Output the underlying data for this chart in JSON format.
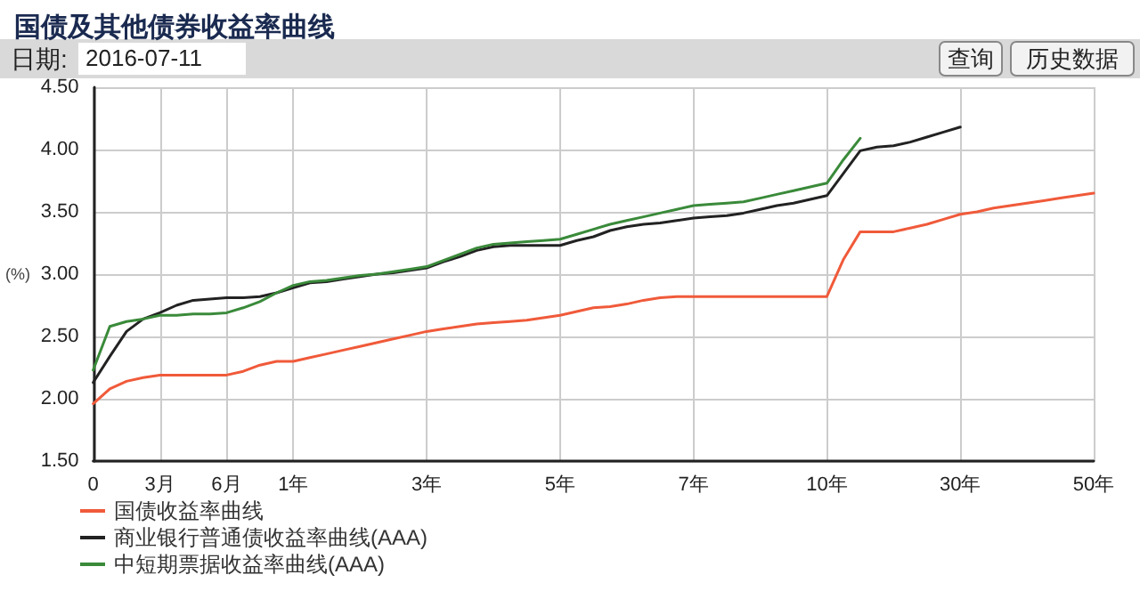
{
  "chart_data": {
    "type": "line",
    "title": "国债及其他债券收益率曲线",
    "ylabel": "(%)",
    "annotations": [
      "日期:",
      "2016-07-11",
      "查询",
      "历史数据"
    ],
    "categories": [
      "0",
      null,
      null,
      null,
      "3月",
      null,
      null,
      null,
      "6月",
      null,
      null,
      null,
      "1年",
      null,
      null,
      null,
      null,
      null,
      null,
      null,
      "3年",
      null,
      null,
      null,
      null,
      null,
      null,
      null,
      "5年",
      null,
      null,
      null,
      null,
      null,
      null,
      null,
      "7年",
      null,
      null,
      null,
      null,
      null,
      null,
      null,
      "10年",
      null,
      null,
      null,
      null,
      null,
      null,
      null,
      "30年",
      null,
      null,
      null,
      null,
      null,
      null,
      null,
      "50年"
    ],
    "ylim": [
      1.5,
      4.5
    ],
    "yticks": [
      {
        "value": 1.5,
        "label": "1.50"
      },
      {
        "value": 2,
        "label": "2.00"
      },
      {
        "value": 2.5,
        "label": "2.50"
      },
      {
        "value": 3,
        "label": "3.00"
      },
      {
        "value": 3.5,
        "label": "3.50"
      },
      {
        "value": 4,
        "label": "4.00"
      },
      {
        "value": 4.5,
        "label": "4.50"
      }
    ],
    "grid": true,
    "legend": "bottom left",
    "marker": "none",
    "line_style": "solid",
    "series": [
      {
        "name": "国债收益率曲线",
        "color": "#f05a3a",
        "values": [
          1.96,
          2.08,
          2.14,
          2.17,
          2.19,
          2.19,
          2.19,
          2.19,
          2.19,
          2.22,
          2.27,
          2.3,
          2.3,
          2.33,
          2.36,
          2.39,
          2.42,
          2.45,
          2.48,
          2.51,
          2.54,
          2.56,
          2.58,
          2.6,
          2.61,
          2.62,
          2.63,
          2.65,
          2.67,
          2.7,
          2.73,
          2.74,
          2.76,
          2.79,
          2.81,
          2.82,
          2.82,
          2.82,
          2.82,
          2.82,
          2.82,
          2.82,
          2.82,
          2.82,
          2.82,
          3.12,
          3.34,
          3.34,
          3.34,
          3.37,
          3.4,
          3.44,
          3.48,
          3.5,
          3.53,
          3.55,
          3.57,
          3.59,
          3.61,
          3.63,
          3.65
        ]
      },
      {
        "name": "商业银行普通债收益率曲线(AAA)",
        "color": "#222222",
        "values": [
          2.13,
          2.34,
          2.54,
          2.64,
          2.69,
          2.75,
          2.79,
          2.8,
          2.81,
          2.81,
          2.82,
          2.85,
          2.89,
          2.93,
          2.94,
          2.96,
          2.98,
          3.0,
          3.01,
          3.03,
          3.05,
          3.1,
          3.14,
          3.19,
          3.22,
          3.23,
          3.23,
          3.23,
          3.23,
          3.27,
          3.3,
          3.35,
          3.38,
          3.4,
          3.41,
          3.43,
          3.45,
          3.46,
          3.47,
          3.49,
          3.52,
          3.55,
          3.57,
          3.6,
          3.63,
          3.81,
          3.99,
          4.02,
          4.03,
          4.06,
          4.1,
          4.14,
          4.18,
          null,
          null,
          null,
          null,
          null,
          null,
          null,
          null
        ]
      },
      {
        "name": "中短期票据收益率曲线(AAA)",
        "color": "#3a8a3a",
        "values": [
          2.23,
          2.58,
          2.62,
          2.64,
          2.67,
          2.67,
          2.68,
          2.68,
          2.69,
          2.73,
          2.78,
          2.85,
          2.91,
          2.94,
          2.95,
          2.97,
          2.99,
          3.0,
          3.02,
          3.04,
          3.06,
          3.11,
          3.16,
          3.21,
          3.24,
          3.25,
          3.26,
          3.27,
          3.28,
          3.32,
          3.36,
          3.4,
          3.43,
          3.46,
          3.49,
          3.52,
          3.55,
          3.56,
          3.57,
          3.58,
          3.61,
          3.64,
          3.67,
          3.7,
          3.73,
          3.92,
          4.09,
          null,
          null,
          null,
          null,
          null,
          null,
          null,
          null,
          null,
          null,
          null,
          null,
          null,
          null
        ]
      }
    ]
  }
}
